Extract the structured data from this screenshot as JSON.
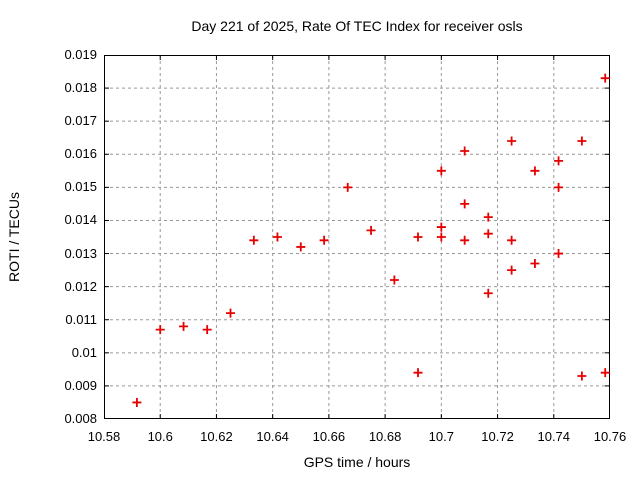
{
  "chart_data": {
    "type": "scatter",
    "title": "Day 221 of 2025, Rate Of TEC Index for receiver osls",
    "xlabel": "GPS time / hours",
    "ylabel": "ROTI / TECUs",
    "xlim": [
      10.58,
      10.76
    ],
    "ylim": [
      0.008,
      0.019
    ],
    "x_tick_values": [
      10.58,
      10.6,
      10.62,
      10.64,
      10.66,
      10.68,
      10.7,
      10.72,
      10.74,
      10.76
    ],
    "x_tick_labels": [
      "10.58",
      "10.6",
      "10.62",
      "10.64",
      "10.66",
      "10.68",
      "10.7",
      "10.72",
      "10.74",
      "10.76"
    ],
    "y_tick_values": [
      0.008,
      0.009,
      0.01,
      0.011,
      0.012,
      0.013,
      0.014,
      0.015,
      0.016,
      0.017,
      0.018,
      0.019
    ],
    "y_tick_labels": [
      "0.008",
      "0.009",
      "0.01",
      "0.011",
      "0.012",
      "0.013",
      "0.014",
      "0.015",
      "0.016",
      "0.017",
      "0.018",
      "0.019"
    ],
    "grid": true,
    "legend": "none",
    "marker": "plus",
    "marker_color": "#e60000",
    "grid_color": "#999999",
    "frame_color": "#000000",
    "background": "#ffffff",
    "points": [
      [
        10.5917,
        0.0085
      ],
      [
        10.6,
        0.0107
      ],
      [
        10.6083,
        0.0108
      ],
      [
        10.6167,
        0.0107
      ],
      [
        10.625,
        0.0112
      ],
      [
        10.6333,
        0.0134
      ],
      [
        10.6417,
        0.0135
      ],
      [
        10.65,
        0.0132
      ],
      [
        10.6583,
        0.0134
      ],
      [
        10.6667,
        0.015
      ],
      [
        10.675,
        0.0137
      ],
      [
        10.6833,
        0.0122
      ],
      [
        10.6917,
        0.0135
      ],
      [
        10.6917,
        0.0094
      ],
      [
        10.7,
        0.0155
      ],
      [
        10.7,
        0.0138
      ],
      [
        10.7,
        0.0135
      ],
      [
        10.7083,
        0.0161
      ],
      [
        10.7083,
        0.0145
      ],
      [
        10.7083,
        0.0134
      ],
      [
        10.7167,
        0.0141
      ],
      [
        10.7167,
        0.0136
      ],
      [
        10.7167,
        0.0118
      ],
      [
        10.725,
        0.0164
      ],
      [
        10.725,
        0.0134
      ],
      [
        10.725,
        0.0125
      ],
      [
        10.7333,
        0.0155
      ],
      [
        10.7333,
        0.0127
      ],
      [
        10.7417,
        0.0158
      ],
      [
        10.7417,
        0.015
      ],
      [
        10.7417,
        0.013
      ],
      [
        10.75,
        0.0164
      ],
      [
        10.75,
        0.0093
      ],
      [
        10.7583,
        0.0183
      ],
      [
        10.7583,
        0.0094
      ]
    ]
  }
}
